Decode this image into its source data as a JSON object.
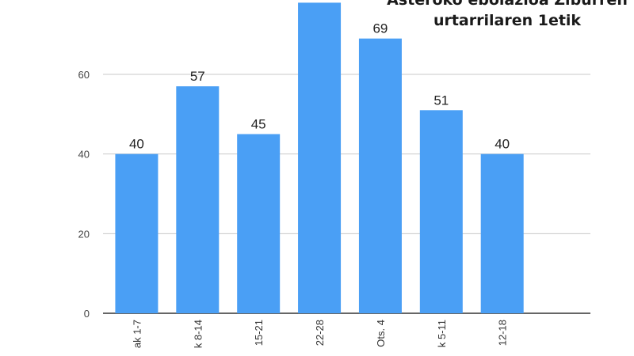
{
  "chart_data": {
    "type": "bar",
    "title_lines": [
      "Asteroko ebolazioa Ziburren",
      "urtarrilaren 1etik"
    ],
    "categories": [
      "ak 1-7",
      "k 8-14",
      "15-21",
      "22-28",
      "Ots. 4",
      "k 5-11",
      "12-18",
      ""
    ],
    "values": [
      40,
      57,
      45,
      78,
      69,
      51,
      40,
      null
    ],
    "data_labels": [
      "40",
      "57",
      "45",
      "",
      "69",
      "51",
      "40",
      ""
    ],
    "yticks": [
      0,
      20,
      40,
      60
    ],
    "ylim": [
      0,
      80
    ],
    "grid": true,
    "bar_color": "#4a9ff5",
    "xlabel": "",
    "ylabel": ""
  }
}
